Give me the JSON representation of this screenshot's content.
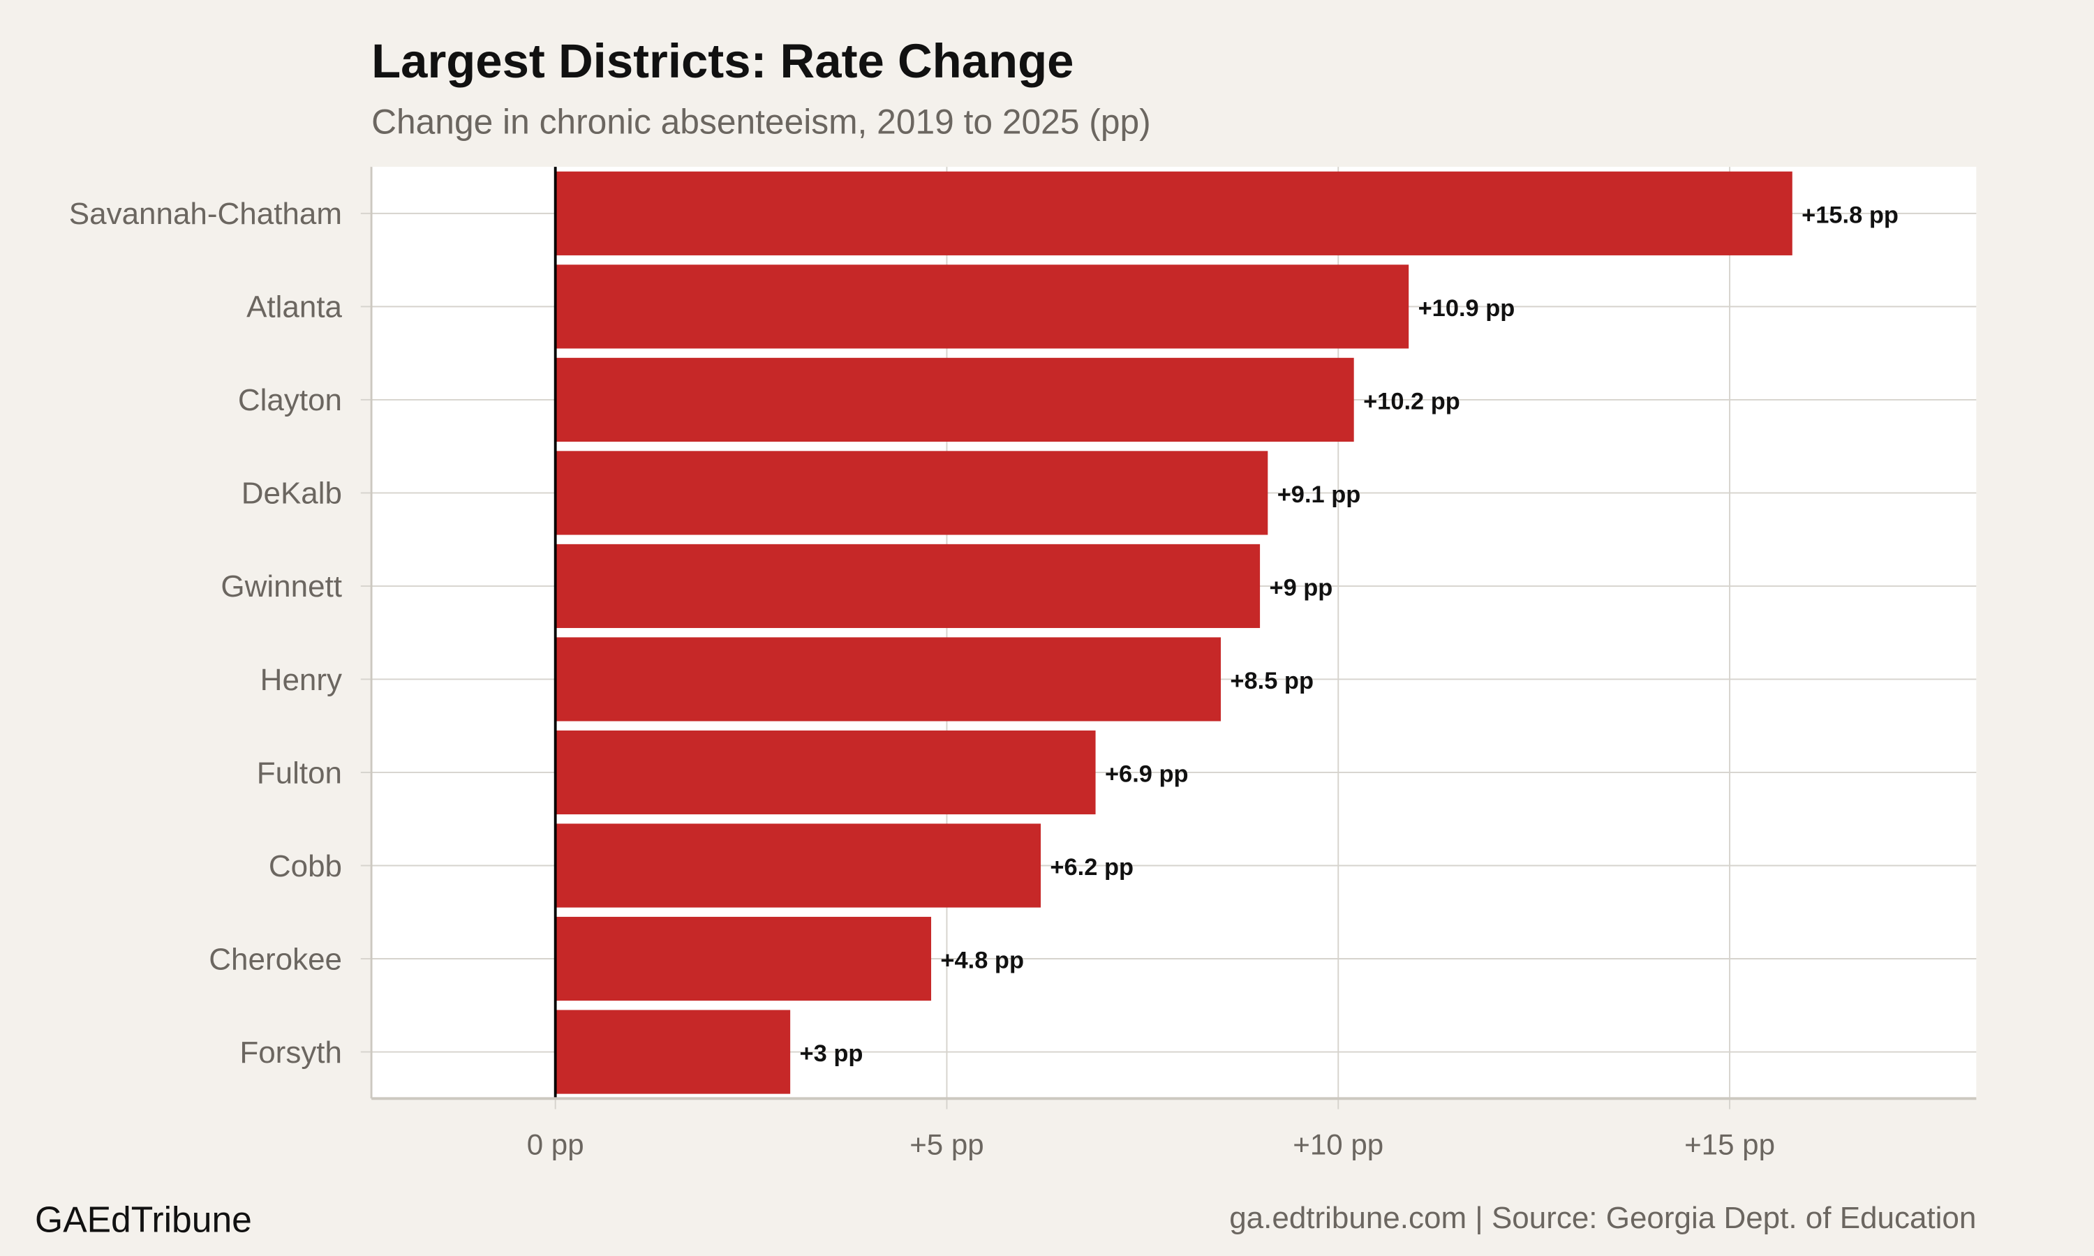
{
  "chart_data": {
    "type": "bar",
    "orientation": "horizontal",
    "title": "Largest Districts: Rate Change",
    "subtitle": "Change in chronic absenteeism, 2019 to 2025 (pp)",
    "categories": [
      "Savannah-Chatham",
      "Atlanta",
      "Clayton",
      "DeKalb",
      "Gwinnett",
      "Henry",
      "Fulton",
      "Cobb",
      "Cherokee",
      "Forsyth"
    ],
    "values": [
      15.8,
      10.9,
      10.2,
      9.1,
      9.0,
      8.5,
      6.9,
      6.2,
      4.8,
      3.0
    ],
    "data_labels": [
      "+15.8 pp",
      "+10.9 pp",
      "+10.2 pp",
      "+9.1 pp",
      "+9 pp",
      "+8.5 pp",
      "+6.9 pp",
      "+6.2 pp",
      "+4.8 pp",
      "+3 pp"
    ],
    "x_ticks": [
      0,
      5,
      10,
      15
    ],
    "x_tick_labels": [
      "0 pp",
      "+5 pp",
      "+10 pp",
      "+15 pp"
    ],
    "xlim": [
      -2.35,
      18.15
    ],
    "xlabel": "",
    "ylabel": "",
    "grid": true,
    "bar_color": "#c62828",
    "background": "#f4f1ec",
    "panel_background": "#ffffff"
  },
  "footer": {
    "brand": "GAEdTribune",
    "source": "ga.edtribune.com | Source: Georgia Dept. of Education"
  }
}
